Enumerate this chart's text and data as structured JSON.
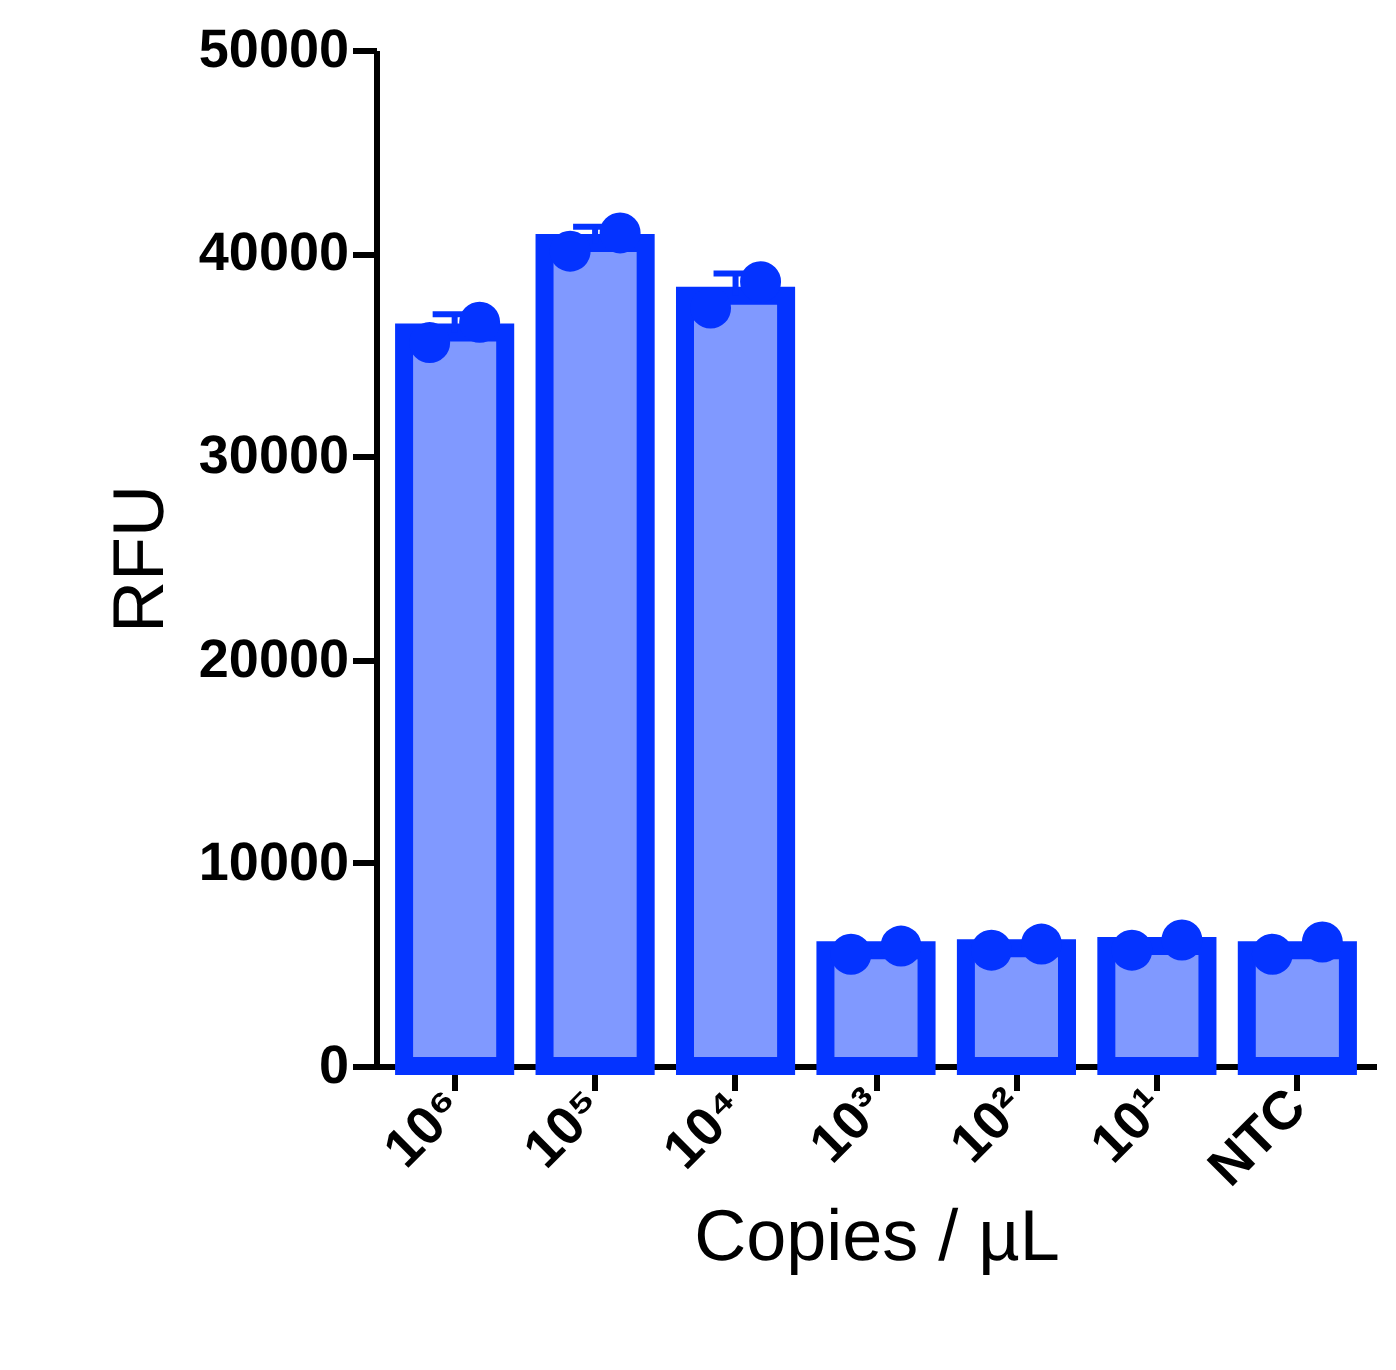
{
  "chart_data": {
    "type": "bar",
    "xlabel": "Copies / µL",
    "ylabel": "RFU",
    "categories": [
      "10⁶",
      "10⁵",
      "10⁴",
      "10³",
      "10²",
      "10¹",
      "NTC"
    ],
    "ylim": [
      0,
      50000
    ],
    "yticks": [
      0,
      10000,
      20000,
      30000,
      40000,
      50000
    ],
    "grid": false,
    "series": [
      {
        "color": "#8099ff",
        "values": [
          36100,
          40500,
          37900,
          5700,
          5800,
          5900,
          5700
        ],
        "errors": [
          [
            36100,
            37000
          ],
          [
            40500,
            41300
          ],
          [
            37900,
            39000
          ],
          null,
          null,
          null,
          null
        ]
      },
      {
        "type": "scatter",
        "color": "#0433ff",
        "x": [
          "10⁶",
          "10⁵",
          "10⁴",
          "10³",
          "10²",
          "10¹",
          "NTC"
        ],
        "values": [
          35600,
          40100,
          37300,
          5500,
          5700,
          5700,
          5500
        ]
      },
      {
        "type": "scatter",
        "color": "#0433ff",
        "x": [
          "10⁶",
          "10⁵",
          "10⁴",
          "10³",
          "10²",
          "10¹",
          "NTC"
        ],
        "values": [
          36600,
          41000,
          38600,
          5900,
          6000,
          6200,
          6100
        ]
      }
    ]
  }
}
